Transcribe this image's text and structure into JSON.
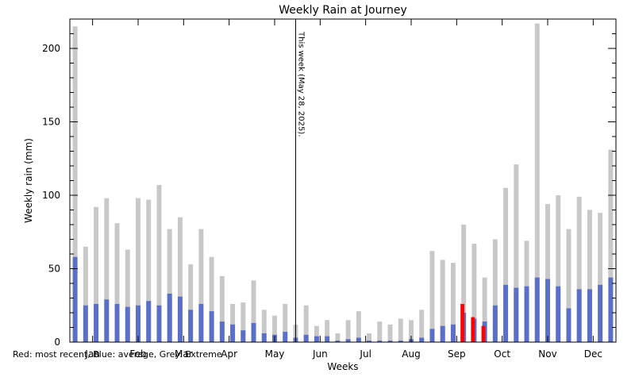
{
  "chart_data": {
    "type": "bar",
    "title": "Weekly Rain at Journey",
    "xlabel": "Weeks",
    "ylabel": "Weekly rain (mm)",
    "ylim": [
      0,
      220
    ],
    "yticks": [
      0,
      50,
      100,
      150,
      200
    ],
    "weeks": 52,
    "month_ticks": [
      "Jan",
      "Feb",
      "Mar",
      "Apr",
      "May",
      "Jun",
      "Jul",
      "Aug",
      "Sep",
      "Oct",
      "Nov",
      "Dec"
    ],
    "legend_text": "Red: most recent, Blue: average, Grey: Extreme",
    "current_week_label": "This week (May 28, 2025).",
    "current_week_position": 21.5,
    "series": [
      {
        "name": "Extreme",
        "color": "#c8c8c8",
        "values": [
          215,
          65,
          92,
          98,
          81,
          63,
          98,
          97,
          107,
          77,
          85,
          53,
          77,
          58,
          45,
          26,
          27,
          42,
          22,
          18,
          26,
          12,
          25,
          11,
          15,
          6,
          15,
          21,
          6,
          14,
          12,
          16,
          15,
          22,
          62,
          56,
          54,
          80,
          67,
          44,
          70,
          105,
          121,
          69,
          217,
          94,
          100,
          77,
          99,
          90,
          88,
          131
        ]
      },
      {
        "name": "Average",
        "color": "#5a6fc8",
        "values": [
          58,
          25,
          26,
          29,
          26,
          24,
          25,
          28,
          25,
          33,
          31,
          22,
          26,
          21,
          14,
          12,
          8,
          13,
          6,
          5,
          7,
          3,
          5,
          4,
          4,
          1,
          2,
          3,
          1,
          1,
          1,
          1,
          2,
          3,
          9,
          11,
          12,
          20,
          16,
          14,
          25,
          39,
          37,
          38,
          44,
          43,
          38,
          23,
          36,
          36,
          39,
          44
        ]
      },
      {
        "name": "Most recent",
        "color": "#ff0000",
        "values": [
          null,
          null,
          null,
          null,
          null,
          null,
          null,
          null,
          null,
          null,
          null,
          null,
          null,
          null,
          null,
          null,
          null,
          null,
          null,
          null,
          null,
          null,
          null,
          null,
          null,
          null,
          null,
          null,
          null,
          null,
          null,
          null,
          null,
          null,
          null,
          null,
          null,
          26,
          17,
          11,
          null,
          null,
          null,
          null,
          null,
          null,
          null,
          null,
          null,
          null,
          null,
          null
        ]
      }
    ]
  }
}
